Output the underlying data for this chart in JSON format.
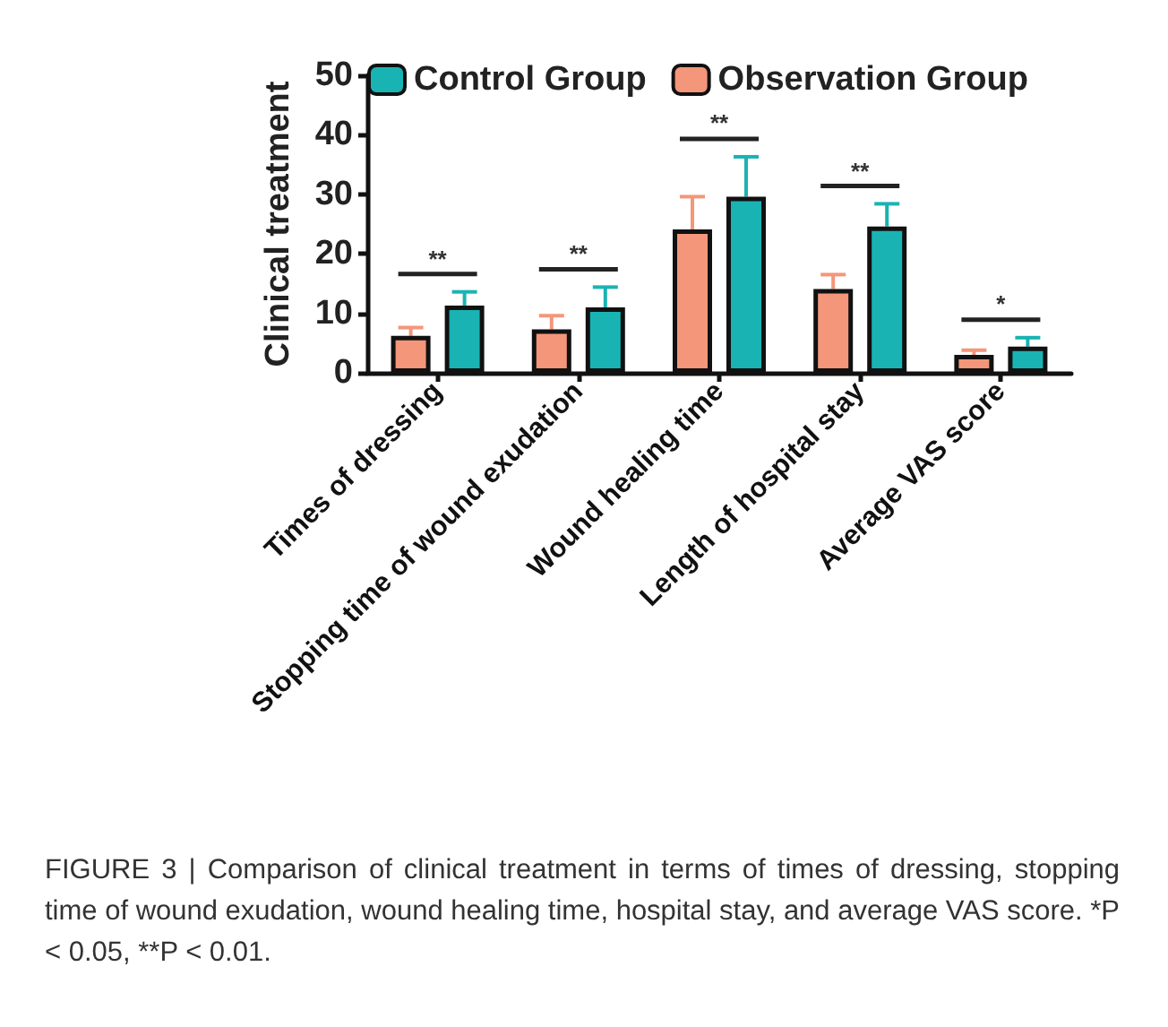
{
  "chart_data": {
    "type": "bar",
    "ylabel": "Clinical treatment",
    "categories": [
      "Times of dressing",
      "Stopping time of wound exudation",
      "Wound healing time",
      "Length of hospital stay",
      "Average VAS score"
    ],
    "series": [
      {
        "name": "Observation Group",
        "color": "#f4967a",
        "values": [
          6.2,
          7.3,
          24.1,
          14.1,
          3.0
        ],
        "errors": [
          [
            6.2,
            7.6
          ],
          [
            7.3,
            9.6
          ],
          [
            24.1,
            29.6
          ],
          [
            14.1,
            16.5
          ],
          [
            3.0,
            3.8
          ]
        ]
      },
      {
        "name": "Control Group",
        "color": "#1ab3b3",
        "values": [
          11.3,
          11.0,
          29.6,
          24.6,
          4.4
        ],
        "errors": [
          [
            11.3,
            13.6
          ],
          [
            11.0,
            14.4
          ],
          [
            29.6,
            36.3
          ],
          [
            24.6,
            28.4
          ],
          [
            4.4,
            5.9
          ]
        ]
      }
    ],
    "ylim": [
      0,
      50
    ],
    "yticks": [
      0,
      10,
      20,
      30,
      40,
      50
    ],
    "grid": false,
    "legend": "top",
    "annotations": [
      "**",
      "**",
      "**",
      "**",
      "*",
      "FIGURE 3 | Comparison of clinical treatment in terms of times of dressing, stopping time of wound exudation, wound healing time, hospital stay, and average VAS score. *P < 0.05, **P < 0.01."
    ]
  }
}
